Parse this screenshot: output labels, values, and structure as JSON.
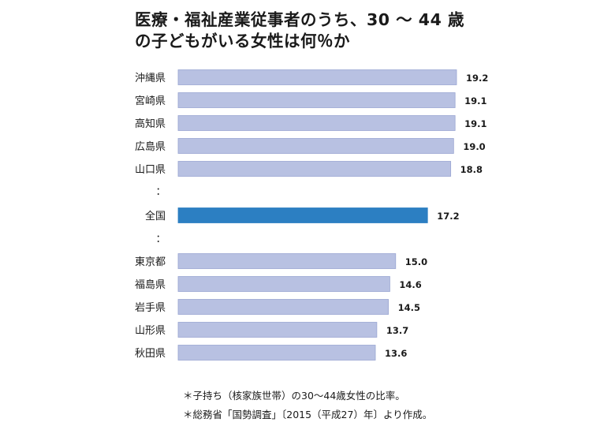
{
  "title_lines": [
    "医療・福祉産業従事者のうち、30 ～ 44 歳",
    "の子どもがいる女性は何％か"
  ],
  "ellipsis_mark": "：",
  "notes": [
    "＊子持ち（核家族世帯）の30～44歳女性の比率。",
    "＊総務省「国勢調査」〔2015（平成27）年〕より作成。"
  ],
  "colors": {
    "bar": "#b8c1e2",
    "bar_stroke": "#9aa6d2",
    "highlight": "#2c7fc2"
  },
  "chart_data": {
    "type": "bar",
    "orientation": "horizontal",
    "title": "医療・福祉産業従事者のうち、30 ～ 44 歳の子どもがいる女性は何％か",
    "xlabel": "",
    "ylabel": "",
    "xlim": [
      0,
      19.2
    ],
    "grid": false,
    "categories": [
      "沖縄県",
      "宮崎県",
      "高知県",
      "広島県",
      "山口県",
      "全国",
      "東京都",
      "福島県",
      "岩手県",
      "山形県",
      "秋田県"
    ],
    "values": [
      19.2,
      19.1,
      19.1,
      19.0,
      18.8,
      17.2,
      15.0,
      14.6,
      14.5,
      13.7,
      13.6
    ],
    "value_labels": [
      "19.2",
      "19.1",
      "19.1",
      "19.0",
      "18.8",
      "17.2",
      "15.0",
      "14.6",
      "14.5",
      "13.7",
      "13.6"
    ],
    "highlight": "全国"
  }
}
